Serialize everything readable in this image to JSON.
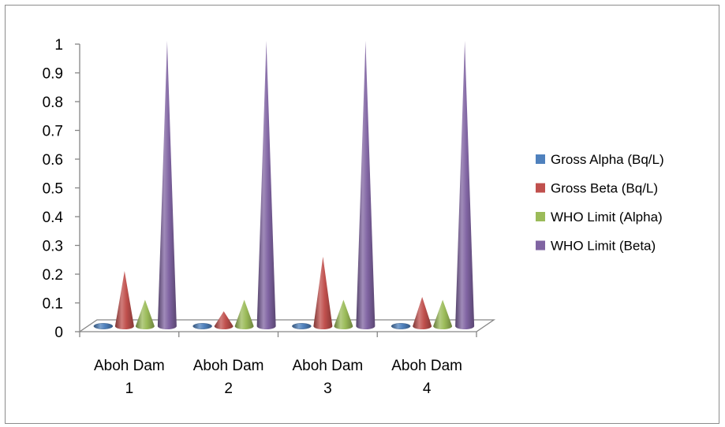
{
  "chart_data": {
    "type": "bar",
    "bar_shape": "cone",
    "categories": [
      [
        "Aboh Dam",
        "1"
      ],
      [
        "Aboh Dam",
        "2"
      ],
      [
        "Aboh Dam",
        "3"
      ],
      [
        "Aboh Dam",
        "4"
      ]
    ],
    "series": [
      {
        "name": "Gross Alpha (Bq/L)",
        "color": "#4f81bd",
        "values": [
          0.01,
          0.01,
          0.015,
          0.01
        ]
      },
      {
        "name": "Gross Beta (Bq/L)",
        "color": "#c0504d",
        "values": [
          0.2,
          0.06,
          0.25,
          0.11
        ]
      },
      {
        "name": "WHO Limit (Alpha)",
        "color": "#9bbb59",
        "values": [
          0.1,
          0.1,
          0.1,
          0.1
        ]
      },
      {
        "name": "WHO Limit (Beta)",
        "color": "#8064a2",
        "values": [
          1,
          1,
          1,
          1
        ]
      }
    ],
    "ylim": [
      0,
      1
    ],
    "yticks": [
      "0",
      "0.1",
      "0.2",
      "0.3",
      "0.4",
      "0.5",
      "0.6",
      "0.7",
      "0.8",
      "0.9",
      "1"
    ],
    "title": "",
    "xlabel": "",
    "ylabel": "",
    "legend_position": "right",
    "grid": false
  }
}
